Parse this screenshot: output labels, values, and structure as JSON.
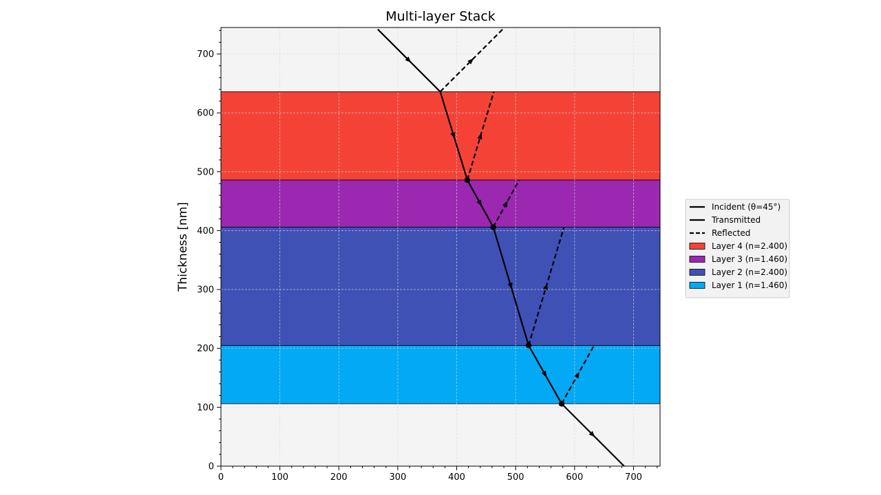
{
  "chart_data": {
    "type": "line",
    "title": "Multi-layer Stack",
    "xlabel": "",
    "ylabel": "Thickness [nm]",
    "xlim": [
      0,
      745
    ],
    "ylim": [
      0,
      745
    ],
    "x_ticks": [
      0,
      100,
      200,
      300,
      400,
      500,
      600,
      700
    ],
    "y_ticks": [
      0,
      100,
      200,
      300,
      400,
      500,
      600,
      700
    ],
    "grid": true,
    "legend_position": "center-right",
    "legend": [
      {
        "label": "Incident (θ=45°)",
        "kind": "solid"
      },
      {
        "label": "Transmitted",
        "kind": "solid"
      },
      {
        "label": "Reflected",
        "kind": "dashed"
      },
      {
        "label": "Layer 4 (n=2.400)",
        "kind": "patch",
        "color": "#f44336"
      },
      {
        "label": "Layer 3 (n=1.460)",
        "kind": "patch",
        "color": "#9c27b0"
      },
      {
        "label": "Layer 2 (n=2.400)",
        "kind": "patch",
        "color": "#3f51b5"
      },
      {
        "label": "Layer 1 (n=1.460)",
        "kind": "patch",
        "color": "#03a9f4"
      }
    ],
    "layers": [
      {
        "name": "Layer 1",
        "n": 1.46,
        "y0": 106,
        "y1": 205,
        "color": "#03a9f4"
      },
      {
        "name": "Layer 2",
        "n": 2.4,
        "y0": 205,
        "y1": 406,
        "color": "#3f51b5"
      },
      {
        "name": "Layer 3",
        "n": 1.46,
        "y0": 406,
        "y1": 486,
        "color": "#9c27b0"
      },
      {
        "name": "Layer 4",
        "n": 2.4,
        "y0": 486,
        "y1": 636,
        "color": "#f44336"
      }
    ],
    "series": [
      {
        "name": "Incident (θ=45°)",
        "style": "solid",
        "points": [
          [
            266,
            742
          ],
          [
            372,
            636
          ]
        ]
      },
      {
        "name": "Transmitted",
        "style": "solid",
        "points": [
          [
            372,
            636
          ],
          [
            418,
            486
          ],
          [
            462,
            406
          ],
          [
            522,
            205
          ],
          [
            578,
            106
          ],
          [
            684,
            0
          ]
        ]
      },
      {
        "name": "Reflected",
        "style": "dashed",
        "segments": [
          [
            [
              372,
              636
            ],
            [
              478,
              742
            ]
          ],
          [
            [
              418,
              486
            ],
            [
              463,
              636
            ]
          ],
          [
            [
              462,
              406
            ],
            [
              506,
              486
            ]
          ],
          [
            [
              522,
              205
            ],
            [
              582,
              406
            ]
          ],
          [
            [
              578,
              106
            ],
            [
              633,
              205
            ]
          ]
        ]
      }
    ],
    "interface_points": [
      [
        418,
        486
      ],
      [
        462,
        406
      ],
      [
        522,
        205
      ],
      [
        578,
        106
      ]
    ]
  }
}
